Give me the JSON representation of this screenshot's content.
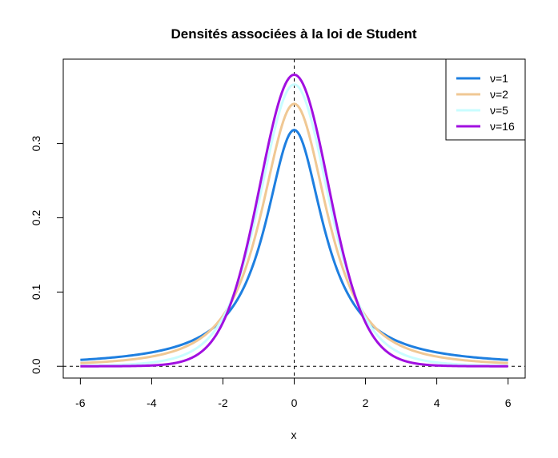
{
  "chart_data": {
    "type": "line",
    "title": "Densités associées à la loi de Student",
    "xlabel": "x",
    "ylabel": "",
    "xlim": [
      -6.48,
      6.48
    ],
    "ylim": [
      -0.0159,
      0.4137
    ],
    "x_ticks": [
      -6,
      -4,
      -2,
      0,
      2,
      4,
      6
    ],
    "y_ticks": [
      0.0,
      0.1,
      0.2,
      0.3
    ],
    "x_tick_labels": [
      "-6",
      "-4",
      "-2",
      "0",
      "2",
      "4",
      "6"
    ],
    "y_tick_labels": [
      "0.0",
      "0.1",
      "0.2",
      "0.3"
    ],
    "x_sample_range": [
      -6,
      6
    ],
    "x_sample_count": 241,
    "grid": false,
    "legend_position": "top-right",
    "reference_lines": [
      {
        "orientation": "horizontal",
        "value": 0,
        "style": "dashed",
        "color": "#000000"
      },
      {
        "orientation": "vertical",
        "value": 0,
        "style": "dashed",
        "color": "#000000"
      }
    ],
    "series": [
      {
        "name": "ν=1",
        "df": 1,
        "color": "#1e7fe0"
      },
      {
        "name": "ν=2",
        "df": 2,
        "color": "#f0c894"
      },
      {
        "name": "ν=5",
        "df": 5,
        "color": "#c9fdff"
      },
      {
        "name": "ν=16",
        "df": 16,
        "color": "#a10fe0"
      }
    ]
  }
}
